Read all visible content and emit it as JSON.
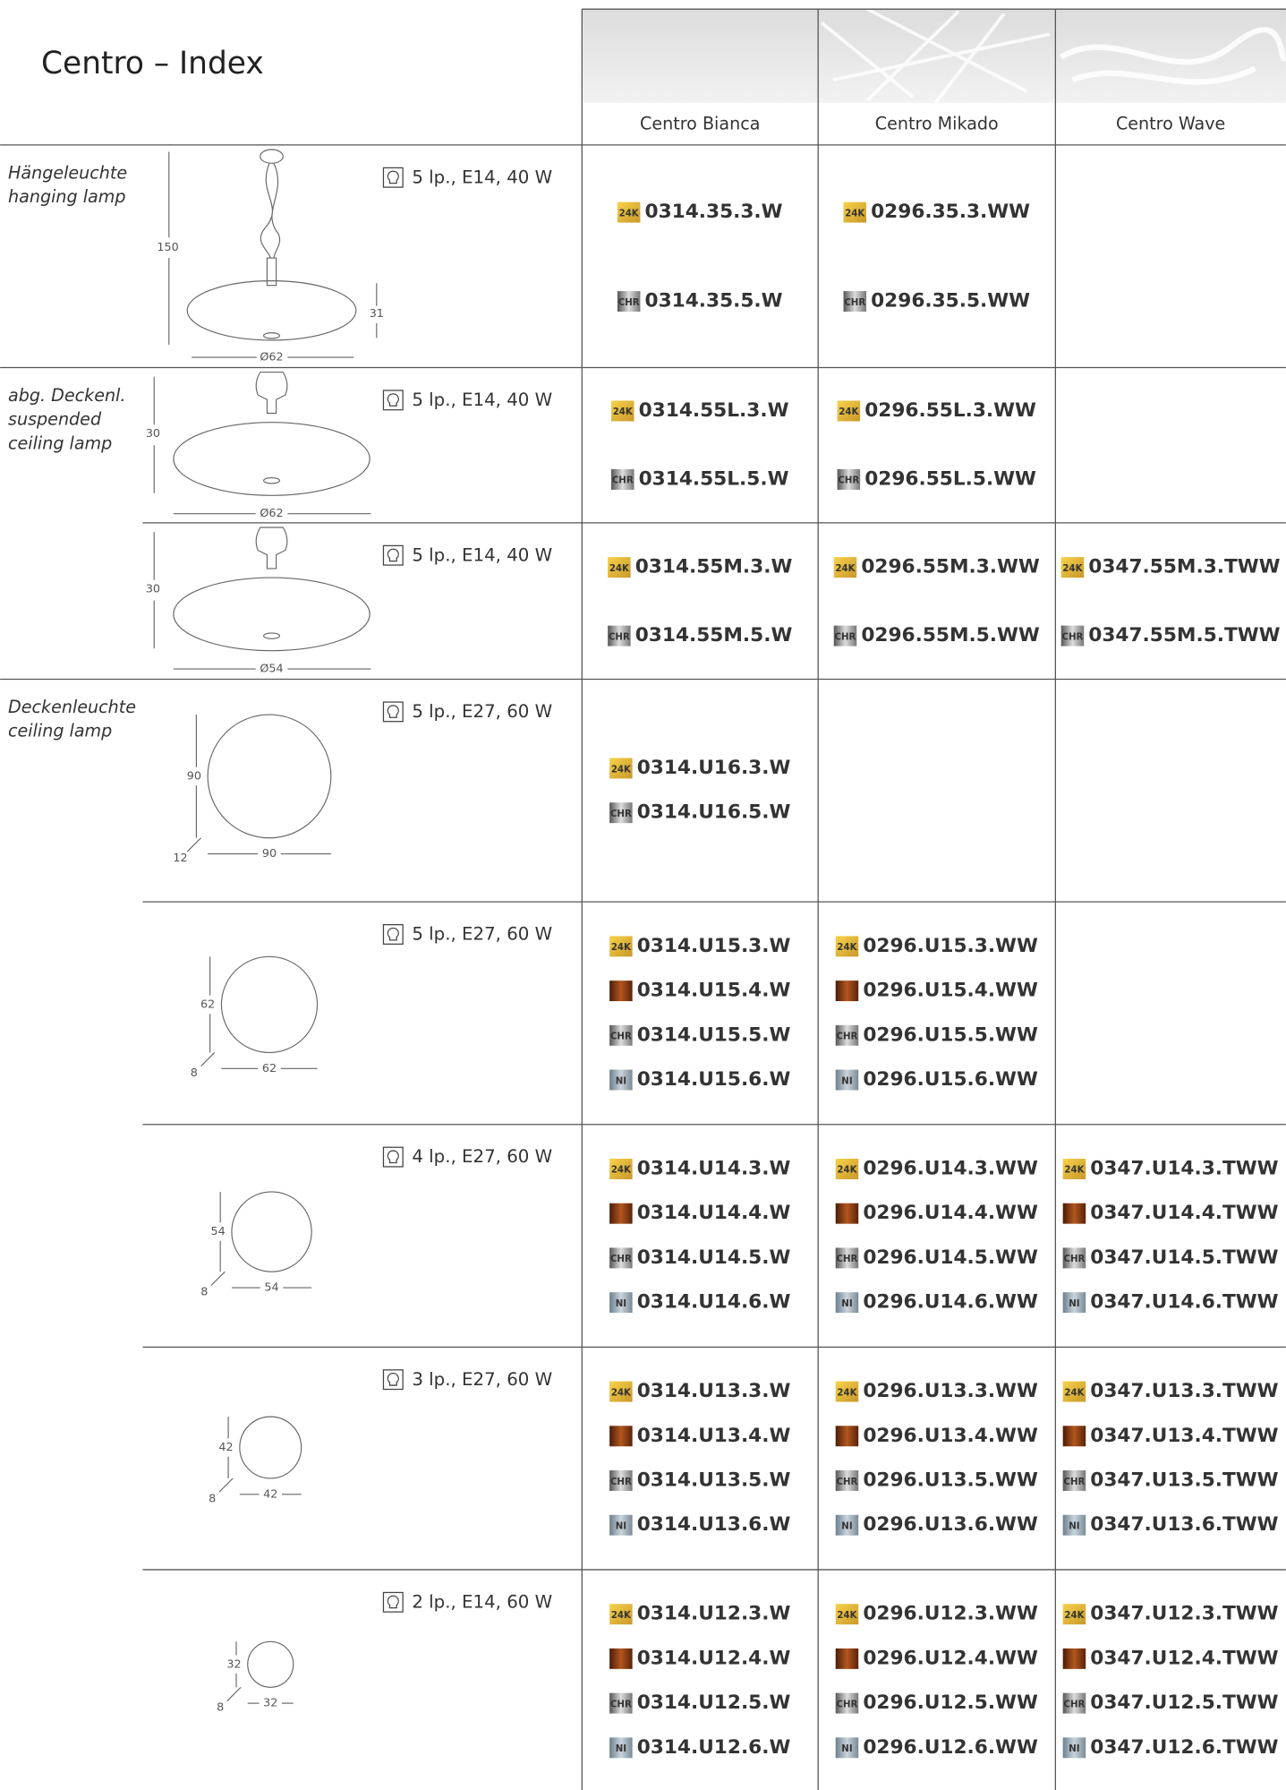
{
  "header": {
    "title": "Centro – Index",
    "columns": [
      "Centro Bianca",
      "Centro Mikado",
      "Centro Wave"
    ]
  },
  "rows": [
    {
      "category": [
        "Hängeleuchte",
        "hanging lamp"
      ],
      "dimensions": [
        "150",
        "31",
        "Ø62"
      ],
      "spec": "5 lp., E14, 40 W",
      "cells": [
        [
          {
            "badge": "24K",
            "code": "0314.35.3.W"
          },
          {
            "badge": "CHR",
            "code": "0314.35.5.W"
          }
        ],
        [
          {
            "badge": "24K",
            "code": "0296.35.3.WW"
          },
          {
            "badge": "CHR",
            "code": "0296.35.5.WW"
          }
        ],
        []
      ]
    },
    {
      "category": [
        "abg. Deckenl.",
        "suspended",
        "ceiling lamp"
      ],
      "dimensions": [
        "30",
        "Ø62"
      ],
      "spec": "5 lp., E14, 40 W",
      "cells": [
        [
          {
            "badge": "24K",
            "code": "0314.55L.3.W"
          },
          {
            "badge": "CHR",
            "code": "0314.55L.5.W"
          }
        ],
        [
          {
            "badge": "24K",
            "code": "0296.55L.3.WW"
          },
          {
            "badge": "CHR",
            "code": "0296.55L.5.WW"
          }
        ],
        []
      ]
    },
    {
      "dimensions": [
        "30",
        "Ø54"
      ],
      "spec": "5 lp., E14, 40 W",
      "cells": [
        [
          {
            "badge": "24K",
            "code": "0314.55M.3.W"
          },
          {
            "badge": "CHR",
            "code": "0314.55M.5.W"
          }
        ],
        [
          {
            "badge": "24K",
            "code": "0296.55M.3.WW"
          },
          {
            "badge": "CHR",
            "code": "0296.55M.5.WW"
          }
        ],
        [
          {
            "badge": "24K",
            "code": "0347.55M.3.TWW"
          },
          {
            "badge": "CHR",
            "code": "0347.55M.5.TWW"
          }
        ]
      ]
    },
    {
      "category": [
        "Deckenleuchte",
        "ceiling lamp"
      ],
      "dimensions": [
        "90",
        "12",
        "90"
      ],
      "spec": "5 lp., E27, 60 W",
      "cells": [
        [
          {
            "badge": "24K",
            "code": "0314.U16.3.W"
          },
          {
            "badge": "CHR",
            "code": "0314.U16.5.W"
          }
        ],
        [],
        []
      ]
    },
    {
      "dimensions": [
        "62",
        "8",
        "62"
      ],
      "spec": "5 lp., E27, 60 W",
      "cells": [
        [
          {
            "badge": "24K",
            "code": "0314.U15.3.W"
          },
          {
            "code": "0314.U15.4.W"
          },
          {
            "badge": "CHR",
            "code": "0314.U15.5.W"
          },
          {
            "badge": "NI",
            "code": "0314.U15.6.W"
          }
        ],
        [
          {
            "badge": "24K",
            "code": "0296.U15.3.WW"
          },
          {
            "code": "0296.U15.4.WW"
          },
          {
            "badge": "CHR",
            "code": "0296.U15.5.WW"
          },
          {
            "badge": "NI",
            "code": "0296.U15.6.WW"
          }
        ],
        []
      ]
    },
    {
      "dimensions": [
        "54",
        "8",
        "54"
      ],
      "spec": "4 lp., E27, 60 W",
      "cells": [
        [
          {
            "badge": "24K",
            "code": "0314.U14.3.W"
          },
          {
            "code": "0314.U14.4.W"
          },
          {
            "badge": "CHR",
            "code": "0314.U14.5.W"
          },
          {
            "badge": "NI",
            "code": "0314.U14.6.W"
          }
        ],
        [
          {
            "badge": "24K",
            "code": "0296.U14.3.WW"
          },
          {
            "code": "0296.U14.4.WW"
          },
          {
            "badge": "CHR",
            "code": "0296.U14.5.WW"
          },
          {
            "badge": "NI",
            "code": "0296.U14.6.WW"
          }
        ],
        [
          {
            "badge": "24K",
            "code": "0347.U14.3.TWW"
          },
          {
            "code": "0347.U14.4.TWW"
          },
          {
            "badge": "CHR",
            "code": "0347.U14.5.TWW"
          },
          {
            "badge": "NI",
            "code": "0347.U14.6.TWW"
          }
        ]
      ]
    },
    {
      "dimensions": [
        "42",
        "8",
        "42"
      ],
      "spec": "3 lp., E27, 60 W",
      "cells": [
        [
          {
            "badge": "24K",
            "code": "0314.U13.3.W"
          },
          {
            "code": "0314.U13.4.W"
          },
          {
            "badge": "CHR",
            "code": "0314.U13.5.W"
          },
          {
            "badge": "NI",
            "code": "0314.U13.6.W"
          }
        ],
        [
          {
            "badge": "24K",
            "code": "0296.U13.3.WW"
          },
          {
            "code": "0296.U13.4.WW"
          },
          {
            "badge": "CHR",
            "code": "0296.U13.5.WW"
          },
          {
            "badge": "NI",
            "code": "0296.U13.6.WW"
          }
        ],
        [
          {
            "badge": "24K",
            "code": "0347.U13.3.TWW"
          },
          {
            "code": "0347.U13.4.TWW"
          },
          {
            "badge": "CHR",
            "code": "0347.U13.5.TWW"
          },
          {
            "badge": "NI",
            "code": "0347.U13.6.TWW"
          }
        ]
      ]
    },
    {
      "dimensions": [
        "32",
        "8",
        "32"
      ],
      "spec": "2 lp., E14, 60 W",
      "cells": [
        [
          {
            "badge": "24K",
            "code": "0314.U12.3.W"
          },
          {
            "code": "0314.U12.4.W"
          },
          {
            "badge": "CHR",
            "code": "0314.U12.5.W"
          },
          {
            "badge": "NI",
            "code": "0314.U12.6.W"
          }
        ],
        [
          {
            "badge": "24K",
            "code": "0296.U12.3.WW"
          },
          {
            "code": "0296.U12.4.WW"
          },
          {
            "badge": "CHR",
            "code": "0296.U12.5.WW"
          },
          {
            "badge": "NI",
            "code": "0296.U12.6.WW"
          }
        ],
        [
          {
            "badge": "24K",
            "code": "0347.U12.3.TWW"
          },
          {
            "code": "0347.U12.4.TWW"
          },
          {
            "badge": "CHR",
            "code": "0347.U12.5.TWW"
          },
          {
            "badge": "NI",
            "code": "0347.U12.6.TWW"
          }
        ]
      ]
    }
  ]
}
